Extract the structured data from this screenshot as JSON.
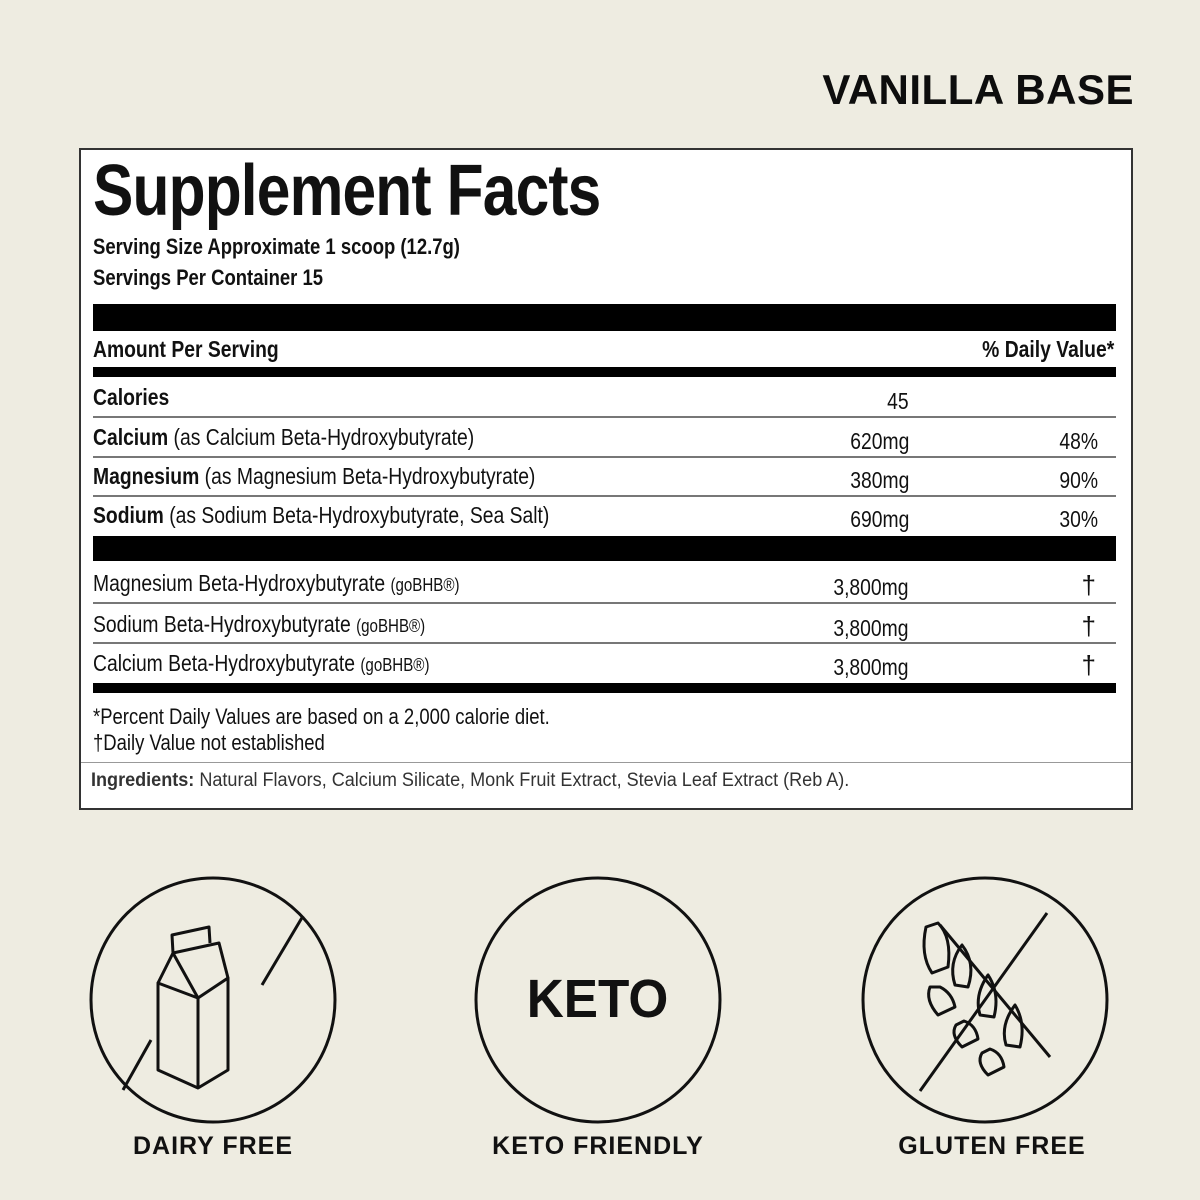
{
  "flavor": "VANILLA BASE",
  "label": {
    "title": "Supplement Facts",
    "serving_size": "Serving Size Approximate 1 scoop (12.7g)",
    "servings_per_container": "Servings Per Container 15",
    "amount_header": "Amount Per Serving",
    "dv_header": "% Daily Value*",
    "calories": {
      "name": "Calories",
      "amount": "45"
    },
    "nutrients": [
      {
        "name": "Calcium",
        "detail": "(as Calcium Beta-Hydroxybutyrate)",
        "amount": "620mg",
        "dv": "48%"
      },
      {
        "name": "Magnesium",
        "detail": "(as Magnesium Beta-Hydroxybutyrate)",
        "amount": "380mg",
        "dv": "90%"
      },
      {
        "name": "Sodium",
        "detail": "(as Sodium Beta-Hydroxybutyrate, Sea Salt)",
        "amount": "690mg",
        "dv": "30%"
      }
    ],
    "blends": [
      {
        "name": "Magnesium Beta-Hydroxybutyrate",
        "brand": "(goBHB®)",
        "amount": "3,800mg",
        "dv": "†"
      },
      {
        "name": "Sodium Beta-Hydroxybutyrate",
        "brand": "(goBHB®)",
        "amount": "3,800mg",
        "dv": "†"
      },
      {
        "name": "Calcium Beta-Hydroxybutyrate",
        "brand": "(goBHB®)",
        "amount": "3,800mg",
        "dv": "†"
      }
    ],
    "footnote_1": "*Percent Daily Values are based on a 2,000 calorie diet.",
    "footnote_2": "†Daily Value not established",
    "ingredients_label": "Ingredients:",
    "ingredients": "Natural Flavors, Calcium Silicate, Monk Fruit Extract, Stevia Leaf Extract (Reb A)."
  },
  "badges": [
    {
      "icon": "milk-carton-crossed-icon",
      "label": "DAIRY FREE"
    },
    {
      "icon": "keto-icon",
      "text": "KETO",
      "label": "KETO FRIENDLY"
    },
    {
      "icon": "wheat-crossed-icon",
      "label": "GLUTEN FREE"
    }
  ]
}
